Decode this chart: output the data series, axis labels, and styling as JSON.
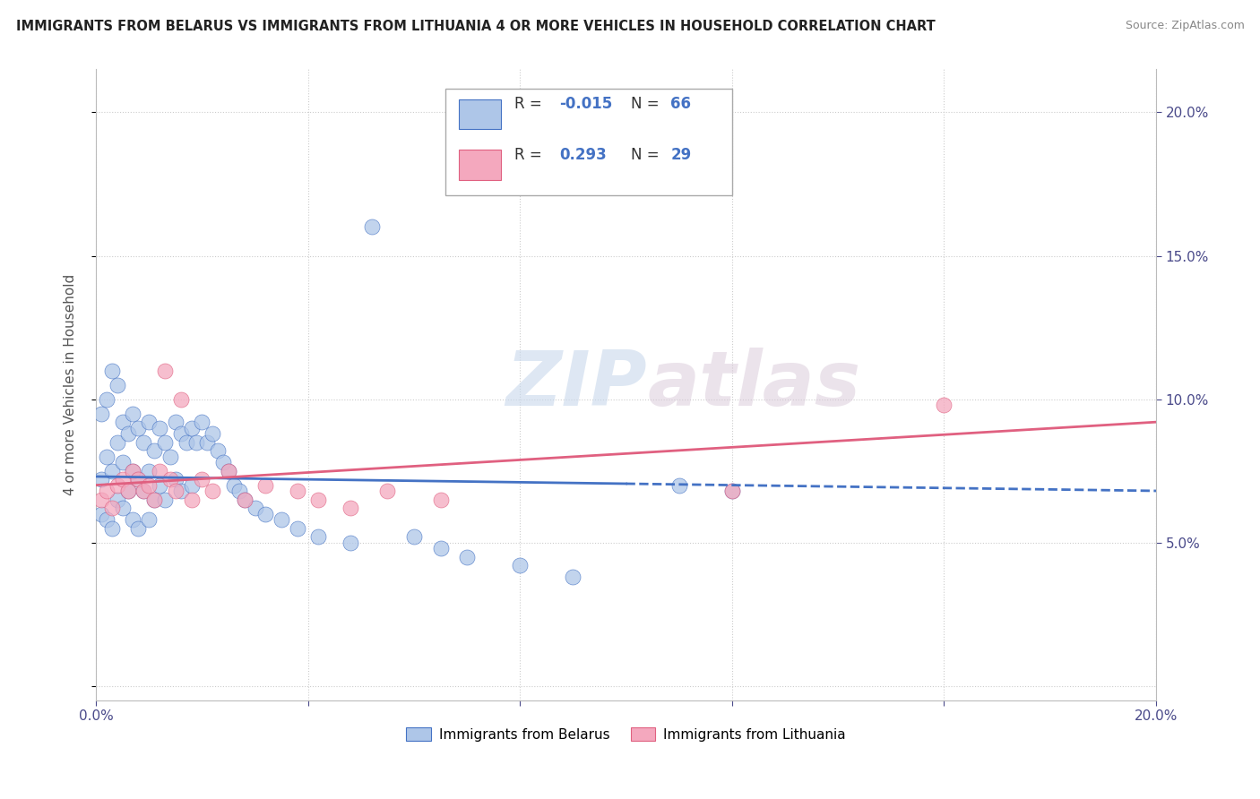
{
  "title": "IMMIGRANTS FROM BELARUS VS IMMIGRANTS FROM LITHUANIA 4 OR MORE VEHICLES IN HOUSEHOLD CORRELATION CHART",
  "source": "Source: ZipAtlas.com",
  "ylabel": "4 or more Vehicles in Household",
  "xlim": [
    0.0,
    0.2
  ],
  "ylim": [
    -0.005,
    0.215
  ],
  "color_belarus": "#aec6e8",
  "color_lithuania": "#f4a8be",
  "line_color_belarus": "#4472c4",
  "line_color_lithuania": "#e06080",
  "watermark_zip": "ZIP",
  "watermark_atlas": "atlas",
  "belarus_x": [
    0.001,
    0.001,
    0.001,
    0.002,
    0.002,
    0.002,
    0.003,
    0.003,
    0.003,
    0.004,
    0.004,
    0.004,
    0.005,
    0.005,
    0.005,
    0.006,
    0.006,
    0.007,
    0.007,
    0.007,
    0.008,
    0.008,
    0.008,
    0.009,
    0.009,
    0.01,
    0.01,
    0.01,
    0.011,
    0.011,
    0.012,
    0.012,
    0.013,
    0.013,
    0.014,
    0.015,
    0.015,
    0.016,
    0.016,
    0.017,
    0.018,
    0.018,
    0.019,
    0.02,
    0.021,
    0.022,
    0.023,
    0.024,
    0.025,
    0.026,
    0.027,
    0.028,
    0.03,
    0.032,
    0.035,
    0.038,
    0.042,
    0.048,
    0.052,
    0.06,
    0.065,
    0.07,
    0.08,
    0.09,
    0.11,
    0.12
  ],
  "belarus_y": [
    0.095,
    0.072,
    0.06,
    0.1,
    0.08,
    0.058,
    0.11,
    0.075,
    0.055,
    0.105,
    0.085,
    0.065,
    0.092,
    0.078,
    0.062,
    0.088,
    0.068,
    0.095,
    0.075,
    0.058,
    0.09,
    0.072,
    0.055,
    0.085,
    0.068,
    0.092,
    0.075,
    0.058,
    0.082,
    0.065,
    0.09,
    0.07,
    0.085,
    0.065,
    0.08,
    0.092,
    0.072,
    0.088,
    0.068,
    0.085,
    0.09,
    0.07,
    0.085,
    0.092,
    0.085,
    0.088,
    0.082,
    0.078,
    0.075,
    0.07,
    0.068,
    0.065,
    0.062,
    0.06,
    0.058,
    0.055,
    0.052,
    0.05,
    0.16,
    0.052,
    0.048,
    0.045,
    0.042,
    0.038,
    0.07,
    0.068
  ],
  "lithuania_x": [
    0.001,
    0.002,
    0.003,
    0.004,
    0.005,
    0.006,
    0.007,
    0.008,
    0.009,
    0.01,
    0.011,
    0.012,
    0.013,
    0.014,
    0.015,
    0.016,
    0.018,
    0.02,
    0.022,
    0.025,
    0.028,
    0.032,
    0.038,
    0.042,
    0.048,
    0.055,
    0.065,
    0.12,
    0.16
  ],
  "lithuania_y": [
    0.065,
    0.068,
    0.062,
    0.07,
    0.072,
    0.068,
    0.075,
    0.072,
    0.068,
    0.07,
    0.065,
    0.075,
    0.11,
    0.072,
    0.068,
    0.1,
    0.065,
    0.072,
    0.068,
    0.075,
    0.065,
    0.07,
    0.068,
    0.065,
    0.062,
    0.068,
    0.065,
    0.068,
    0.098
  ]
}
